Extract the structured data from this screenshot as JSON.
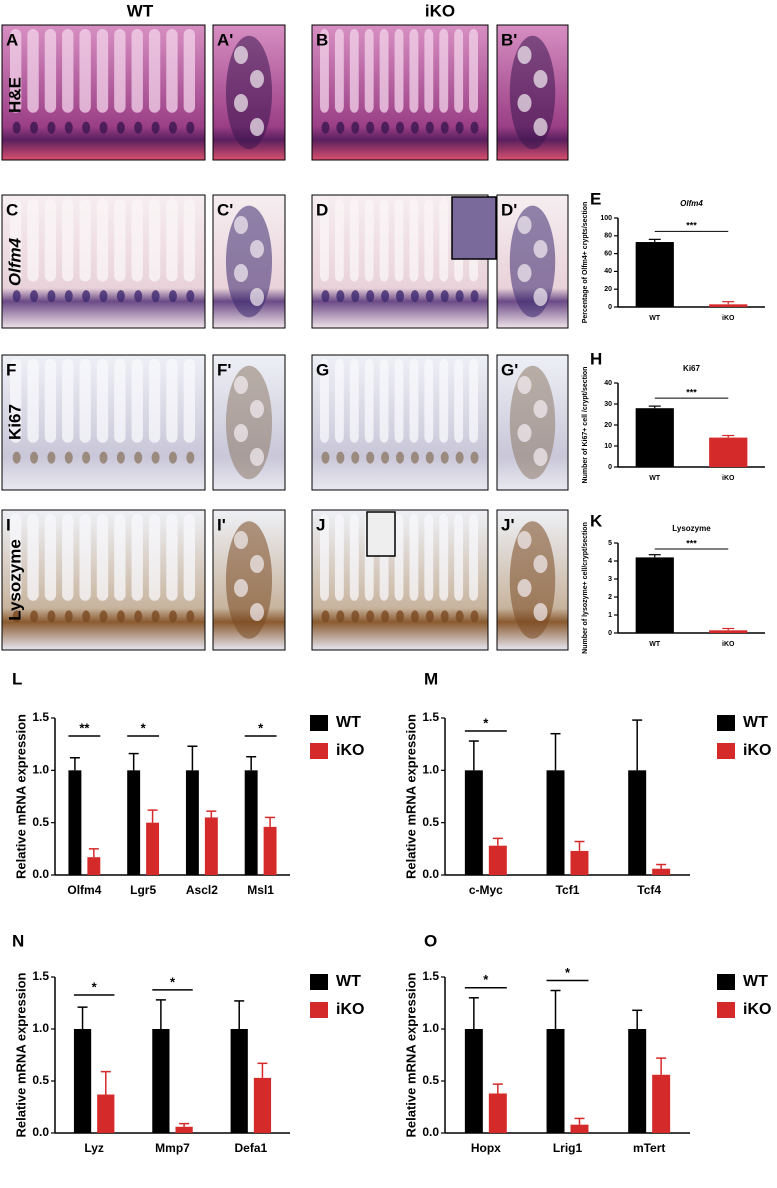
{
  "column_headers": [
    "WT",
    "iKO"
  ],
  "row_labels": [
    "H&E",
    "Olfm4",
    "Ki67",
    "Lysozyme"
  ],
  "image_panels": [
    [
      "A",
      "A'",
      "B",
      "B'"
    ],
    [
      "C",
      "C'",
      "D",
      "D'"
    ],
    [
      "F",
      "F'",
      "G",
      "G'"
    ],
    [
      "I",
      "I'",
      "J",
      "J'"
    ]
  ],
  "chart_data": [
    {
      "type": "bar",
      "panel": "E",
      "title": "Olfm4",
      "y_label": "Percentage of Olfm4+ crypts/section",
      "categories": [
        "WT",
        "iKO"
      ],
      "values": [
        73,
        3
      ],
      "errors": [
        3,
        3
      ],
      "colors": [
        "#000000",
        "#d42a2a"
      ],
      "significance": "***",
      "ylim": [
        0,
        100
      ],
      "yticks": [
        0,
        20,
        40,
        60,
        80,
        100
      ]
    },
    {
      "type": "bar",
      "panel": "H",
      "title": "Ki67",
      "y_label": "Number of Ki67+ cell /crypt/section",
      "categories": [
        "WT",
        "iKO"
      ],
      "values": [
        28,
        14
      ],
      "errors": [
        1,
        1
      ],
      "colors": [
        "#000000",
        "#d42a2a"
      ],
      "significance": "***",
      "ylim": [
        0,
        40
      ],
      "yticks": [
        0,
        10,
        20,
        30,
        40
      ]
    },
    {
      "type": "bar",
      "panel": "K",
      "title": "Lysozyme",
      "y_label": "Number of lysozyme+ cell/crypt/section",
      "categories": [
        "WT",
        "iKO"
      ],
      "values": [
        4.2,
        0.15
      ],
      "errors": [
        0.15,
        0.1
      ],
      "colors": [
        "#000000",
        "#d42a2a"
      ],
      "significance": "***",
      "ylim": [
        0,
        5
      ],
      "yticks": [
        0,
        1,
        2,
        3,
        4,
        5
      ]
    },
    {
      "type": "bar",
      "panel": "L",
      "y_label": "Relative mRNA expression",
      "categories": [
        "Olfm4",
        "Lgr5",
        "Ascl2",
        "Msl1"
      ],
      "series": [
        {
          "name": "WT",
          "color": "#000000",
          "values": [
            1,
            1,
            1,
            1
          ],
          "errors": [
            0.12,
            0.16,
            0.23,
            0.13
          ]
        },
        {
          "name": "iKO",
          "color": "#d42a2a",
          "values": [
            0.17,
            0.5,
            0.55,
            0.46
          ],
          "errors": [
            0.08,
            0.12,
            0.06,
            0.09
          ]
        }
      ],
      "significance": [
        "**",
        "*",
        null,
        "*"
      ],
      "ylim": [
        0,
        1.5
      ],
      "yticks": [
        {
          "value": 0,
          "label": "0.0"
        },
        0.5,
        {
          "value": 1,
          "label": "1.0"
        },
        1.5
      ]
    },
    {
      "type": "bar",
      "panel": "M",
      "y_label": "Relative mRNA expression",
      "categories": [
        "c-Myc",
        "Tcf1",
        "Tcf4"
      ],
      "series": [
        {
          "name": "WT",
          "color": "#000000",
          "values": [
            1,
            1,
            1
          ],
          "errors": [
            0.28,
            0.35,
            0.48
          ]
        },
        {
          "name": "iKO",
          "color": "#d42a2a",
          "values": [
            0.28,
            0.23,
            0.06
          ],
          "errors": [
            0.07,
            0.09,
            0.04
          ]
        }
      ],
      "significance": [
        "*",
        null,
        null
      ],
      "ylim": [
        0,
        1.5
      ],
      "yticks": [
        {
          "value": 0,
          "label": "0.0"
        },
        0.5,
        {
          "value": 1,
          "label": "1.0"
        },
        1.5
      ]
    },
    {
      "type": "bar",
      "panel": "N",
      "y_label": "Relative mRNA expression",
      "categories": [
        "Lyz",
        "Mmp7",
        "Defa1"
      ],
      "series": [
        {
          "name": "WT",
          "color": "#000000",
          "values": [
            1,
            1,
            1
          ],
          "errors": [
            0.21,
            0.28,
            0.27
          ]
        },
        {
          "name": "iKO",
          "color": "#d42a2a",
          "values": [
            0.37,
            0.06,
            0.53
          ],
          "errors": [
            0.22,
            0.03,
            0.14
          ]
        }
      ],
      "significance": [
        "*",
        "*",
        null
      ],
      "ylim": [
        0,
        1.5
      ],
      "yticks": [
        {
          "value": 0,
          "label": "0.0"
        },
        0.5,
        {
          "value": 1,
          "label": "1.0"
        },
        1.5
      ]
    },
    {
      "type": "bar",
      "panel": "O",
      "y_label": "Relative mRNA expression",
      "categories": [
        "Hopx",
        "Lrig1",
        "mTert"
      ],
      "series": [
        {
          "name": "WT",
          "color": "#000000",
          "values": [
            1,
            1,
            1
          ],
          "errors": [
            0.3,
            0.37,
            0.18
          ]
        },
        {
          "name": "iKO",
          "color": "#d42a2a",
          "values": [
            0.38,
            0.08,
            0.56
          ],
          "errors": [
            0.09,
            0.06,
            0.16
          ]
        }
      ],
      "significance": [
        "*",
        "*",
        null
      ],
      "ylim": [
        0,
        1.5
      ],
      "yticks": [
        {
          "value": 0,
          "label": "0.0"
        },
        0.5,
        {
          "value": 1,
          "label": "1.0"
        },
        1.5
      ]
    }
  ]
}
